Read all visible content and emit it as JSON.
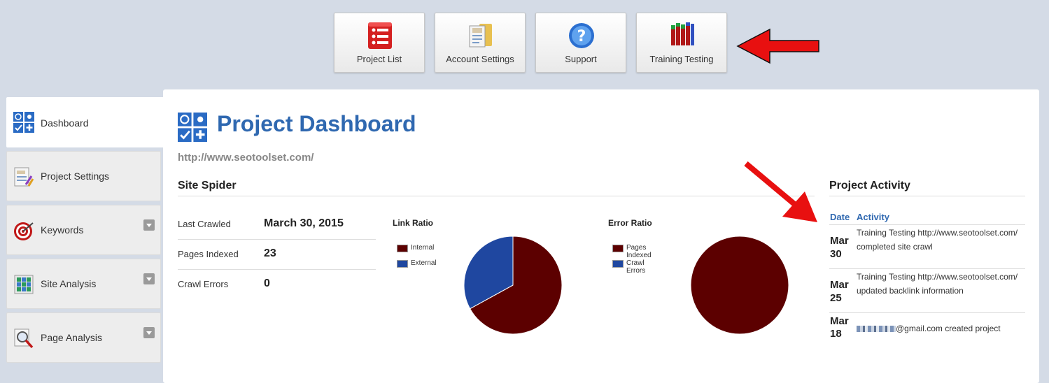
{
  "toolbar": {
    "buttons": [
      {
        "label": "Project List",
        "icon": "list-icon"
      },
      {
        "label": "Account Settings",
        "icon": "account-settings-icon"
      },
      {
        "label": "Support",
        "icon": "help-icon"
      },
      {
        "label": "Training Testing",
        "icon": "bar-chart-icon"
      }
    ]
  },
  "sidebar": {
    "items": [
      {
        "label": "Dashboard",
        "icon": "dashboard-icon",
        "active": true
      },
      {
        "label": "Project Settings",
        "icon": "project-settings-icon"
      },
      {
        "label": "Keywords",
        "icon": "target-icon",
        "has_dropdown": true
      },
      {
        "label": "Site Analysis",
        "icon": "site-analysis-icon",
        "has_dropdown": true
      },
      {
        "label": "Page Analysis",
        "icon": "magnifier-icon",
        "has_dropdown": true
      }
    ]
  },
  "page": {
    "title": "Project Dashboard",
    "url": "http://www.seotoolset.com/"
  },
  "site_spider": {
    "heading": "Site Spider",
    "stats": [
      {
        "label": "Last Crawled",
        "value": "March 30, 2015"
      },
      {
        "label": "Pages Indexed",
        "value": "23"
      },
      {
        "label": "Crawl Errors",
        "value": "0"
      }
    ]
  },
  "chart_data": [
    {
      "type": "pie",
      "title": "Link Ratio",
      "categories": [
        "Internal",
        "External"
      ],
      "values": [
        67,
        33
      ],
      "colors": [
        "#5c0000",
        "#1f47a0"
      ],
      "legend": "left"
    },
    {
      "type": "pie",
      "title": "Error Ratio",
      "categories": [
        "Pages Indexed",
        "Crawl Errors"
      ],
      "values": [
        23,
        0
      ],
      "colors": [
        "#5c0000",
        "#1f47a0"
      ],
      "legend": "left"
    }
  ],
  "activity": {
    "heading": "Project Activity",
    "col_date": "Date",
    "col_activity": "Activity",
    "rows": [
      {
        "month": "Mar",
        "day": "30",
        "text": "Training Testing http://www.seotoolset.com/ completed site crawl"
      },
      {
        "month": "Mar",
        "day": "25",
        "text": "Training Testing http://www.seotoolset.com/ updated backlink information"
      },
      {
        "month": "Mar",
        "day": "18",
        "text": "@gmail.com created project"
      }
    ]
  },
  "colors": {
    "accent": "#2f68b0",
    "annotation_arrow": "#e81010"
  }
}
